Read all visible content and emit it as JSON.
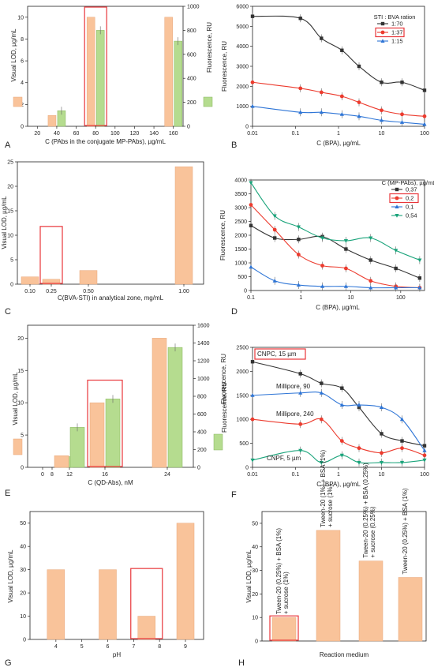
{
  "colors": {
    "orange": "#f9c39a",
    "orange_edge": "#e8a77a",
    "green": "#b5dc8f",
    "green_edge": "#86b65a",
    "highlight": "#e8363a",
    "black": "#333333",
    "red": "#ec3b2e",
    "blue": "#2e75d6",
    "teal": "#19a37a"
  },
  "chart_data": [
    {
      "id": "A",
      "type": "bar",
      "xlabel": "C (PAbs in the conjugate MP-PAbs), µg/mL",
      "ylabel": "Visual LOD, µg/mL",
      "y2label": "Fluorescence, RU",
      "xlim": [
        10,
        170
      ],
      "ylim": [
        0,
        11
      ],
      "y2lim": [
        0,
        1000
      ],
      "xticks": [
        "20",
        "40",
        "60",
        "80",
        "100",
        "120",
        "140",
        "160"
      ],
      "yticks": [
        "0",
        "2",
        "4",
        "6",
        "8",
        "10"
      ],
      "y2ticks": [
        "0",
        "200",
        "400",
        "600",
        "800",
        "1000"
      ],
      "groups": [
        {
          "x": 40,
          "lod": 1.0,
          "fluor": 130
        },
        {
          "x": 80,
          "lod": 10.0,
          "fluor": 800
        },
        {
          "x": 160,
          "lod": 10.0,
          "fluor": 710
        }
      ],
      "highlight_x": 80
    },
    {
      "id": "B",
      "type": "line",
      "xscale": "log",
      "xlabel": "C (BPA), µg/mL",
      "ylabel": "Fluorescence, RU",
      "xlim": [
        0.01,
        100
      ],
      "ylim": [
        0,
        6000
      ],
      "xticks": [
        "0.01",
        "0.1",
        "1",
        "10",
        "100"
      ],
      "yticks": [
        "0",
        "1000",
        "2000",
        "3000",
        "4000",
        "5000",
        "6000"
      ],
      "legend_title": "STI : BVA ration",
      "legend_position": "top-right",
      "series": [
        {
          "name": "1:70",
          "color_key": "black",
          "marker": "square",
          "x": [
            0.01,
            0.13,
            0.4,
            1.2,
            3,
            10,
            30,
            100
          ],
          "y": [
            5500,
            5400,
            4400,
            3800,
            3000,
            2200,
            2200,
            1800
          ]
        },
        {
          "name": "1:37",
          "color_key": "red",
          "marker": "circle",
          "highlight": true,
          "x": [
            0.01,
            0.13,
            0.4,
            1.2,
            3,
            10,
            30,
            100
          ],
          "y": [
            2200,
            1900,
            1700,
            1500,
            1200,
            800,
            600,
            500
          ]
        },
        {
          "name": "1:15",
          "color_key": "blue",
          "marker": "triangle",
          "x": [
            0.01,
            0.13,
            0.4,
            1.2,
            3,
            10,
            30,
            100
          ],
          "y": [
            1000,
            700,
            700,
            600,
            500,
            300,
            200,
            100
          ]
        }
      ]
    },
    {
      "id": "C",
      "type": "bar",
      "xlabel": "C(BVA-STI) in analytical zone, mg/mL",
      "ylabel": "Visual LOD, µg/mL",
      "ylim": [
        0,
        25
      ],
      "categories": [
        "0.10",
        "0.25",
        "0.50",
        "1.00"
      ],
      "values": [
        1.5,
        1.0,
        2.8,
        24
      ],
      "yticks": [
        "0",
        "5",
        "10",
        "15",
        "20",
        "25"
      ],
      "highlight_category": "0.25"
    },
    {
      "id": "D",
      "type": "line",
      "xscale": "log",
      "xlabel": "C (BPA), µg/mL",
      "ylabel": "Fluorescence, RU",
      "xlim": [
        0.1,
        300
      ],
      "ylim": [
        0,
        4000
      ],
      "xticks": [
        "0.1",
        "1",
        "10",
        "100"
      ],
      "yticks": [
        "0",
        "500",
        "1000",
        "1500",
        "2000",
        "2500",
        "3000",
        "3500",
        "4000"
      ],
      "legend_title": "C (MP-PAbs), µg/mL",
      "legend_position": "top-right",
      "series": [
        {
          "name": "0,37",
          "color_key": "black",
          "marker": "square",
          "x": [
            0.1,
            0.3,
            0.9,
            2.7,
            8,
            25,
            80,
            240
          ],
          "y": [
            2350,
            1900,
            1850,
            1950,
            1500,
            1100,
            800,
            450
          ]
        },
        {
          "name": "0,2",
          "color_key": "red",
          "marker": "circle",
          "highlight": true,
          "x": [
            0.1,
            0.3,
            0.9,
            2.7,
            8,
            25,
            80,
            240
          ],
          "y": [
            3100,
            2200,
            1300,
            900,
            800,
            350,
            150,
            100
          ]
        },
        {
          "name": "0,1",
          "color_key": "blue",
          "marker": "triangle",
          "x": [
            0.1,
            0.3,
            0.9,
            2.7,
            8,
            25,
            80,
            240
          ],
          "y": [
            850,
            350,
            200,
            150,
            150,
            100,
            100,
            100
          ]
        },
        {
          "name": "0,54",
          "color_key": "teal",
          "marker": "triangle-down",
          "x": [
            0.1,
            0.3,
            0.9,
            2.7,
            8,
            25,
            80,
            240
          ],
          "y": [
            3900,
            2700,
            2300,
            1900,
            1800,
            1900,
            1450,
            1100
          ]
        }
      ]
    },
    {
      "id": "E",
      "type": "bar",
      "xlabel": "C (QD-Abs), nM",
      "ylabel": "Visual LOD, µg/mL",
      "y2label": "Fluorescence, RU",
      "xlim": [
        4,
        28
      ],
      "ylim": [
        0,
        22
      ],
      "y2lim": [
        0,
        1600
      ],
      "xticks": [
        "0",
        "8",
        "12",
        "16",
        "24"
      ],
      "yticks": [
        "0",
        "5",
        "10",
        "15",
        "20"
      ],
      "y2ticks": [
        "0",
        "200",
        "400",
        "600",
        "800",
        "1000",
        "1200",
        "1400",
        "1600"
      ],
      "groups": [
        {
          "x": 12,
          "lod": 1.0,
          "fluor": 120
        },
        {
          "x": 12,
          "lod": 1.8,
          "fluor": 450
        },
        {
          "x": 16,
          "lod": 10.0,
          "fluor": 770
        },
        {
          "x": 24,
          "lod": 20.0,
          "fluor": 1350
        }
      ],
      "highlight_x": 16
    },
    {
      "id": "F",
      "type": "line",
      "xscale": "log",
      "xlabel": "C (BPA), µg/mL",
      "ylabel": "Fluorescence, RU",
      "xlim": [
        0.01,
        100
      ],
      "ylim": [
        0,
        2500
      ],
      "xticks": [
        "0.01",
        "0.1",
        "1",
        "10",
        "100"
      ],
      "yticks": [
        "0",
        "500",
        "1000",
        "1500",
        "2000",
        "2500"
      ],
      "series": [
        {
          "name": "CNPC, 15 µm",
          "color_key": "black",
          "marker": "square",
          "highlight": true,
          "x": [
            0.01,
            0.13,
            0.4,
            1.2,
            3,
            10,
            30,
            100
          ],
          "y": [
            2200,
            1950,
            1750,
            1650,
            1250,
            700,
            550,
            450
          ]
        },
        {
          "name": "Millipore, 90",
          "color_key": "blue",
          "marker": "triangle",
          "x": [
            0.01,
            0.13,
            0.4,
            1.2,
            3,
            10,
            30,
            100
          ],
          "y": [
            1500,
            1550,
            1550,
            1300,
            1300,
            1250,
            1000,
            350
          ]
        },
        {
          "name": "Millipore, 240",
          "color_key": "red",
          "marker": "circle",
          "x": [
            0.01,
            0.13,
            0.4,
            1.2,
            3,
            10,
            30,
            100
          ],
          "y": [
            1000,
            900,
            1000,
            550,
            400,
            300,
            400,
            250
          ]
        },
        {
          "name": "CNPF, 5 µm",
          "color_key": "teal",
          "marker": "triangle-down",
          "x": [
            0.01,
            0.13,
            0.4,
            1.2,
            3,
            10,
            30,
            100
          ],
          "y": [
            150,
            350,
            100,
            250,
            100,
            100,
            100,
            150
          ]
        }
      ]
    },
    {
      "id": "G",
      "type": "bar",
      "xlabel": "pH",
      "ylabel": "Visual LOD, µg/mL",
      "xlim": [
        3,
        9.7
      ],
      "ylim": [
        0,
        55
      ],
      "xticks": [
        "4",
        "5",
        "6",
        "7",
        "8",
        "9"
      ],
      "yticks": [
        "0",
        "10",
        "20",
        "30",
        "40",
        "50"
      ],
      "x": [
        4,
        6,
        7.5,
        9
      ],
      "values": [
        30,
        30,
        10,
        50
      ],
      "highlight_x": 7.5
    },
    {
      "id": "H",
      "type": "bar",
      "xlabel": "Reaction medium",
      "ylabel": "Visual LOD, µg/mL",
      "ylim": [
        0,
        55
      ],
      "yticks": [
        "0",
        "10",
        "20",
        "30",
        "40",
        "50"
      ],
      "categories": [
        [
          "Tween-20 (0.25%) + BSA (1%)",
          "+ sucrose (1%)"
        ],
        [
          "Tween-20 (1%) + BSA (1%)",
          "+ sucrose (1%)"
        ],
        [
          "Tween-20 (0.25%) + BSA (0.25%)",
          "+ sucrose (0.25%)"
        ],
        [
          "Tween-20 (0.25%) + BSA (1%)"
        ]
      ],
      "values": [
        10,
        47,
        34,
        27
      ],
      "highlight_category": 0
    }
  ]
}
